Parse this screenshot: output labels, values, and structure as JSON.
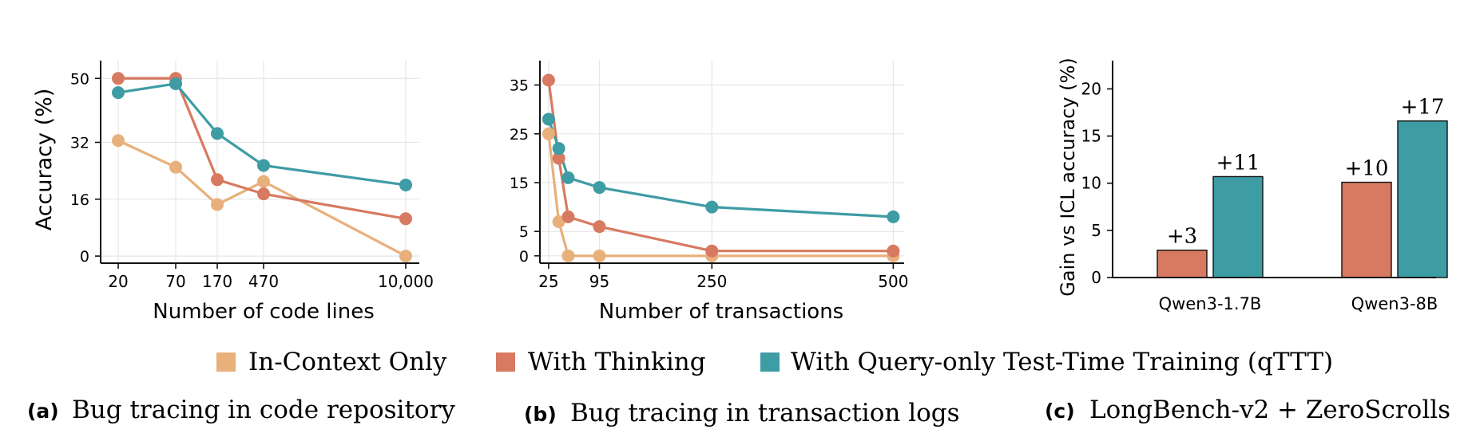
{
  "colors": {
    "in_context": "#E8B07A",
    "thinking": "#D77A61",
    "qttt": "#3E9CA5",
    "grid": "#e6e6e6",
    "axis": "#111111"
  },
  "legend": {
    "items": [
      {
        "label": "In-Context Only",
        "color_key": "in_context"
      },
      {
        "label": "With Thinking",
        "color_key": "thinking"
      },
      {
        "label": "With Query-only Test-Time Training (qTTT)",
        "color_key": "qttt"
      }
    ]
  },
  "captions": {
    "a": {
      "tag": "(a)",
      "text": "Bug tracing in code repository"
    },
    "b": {
      "tag": "(b)",
      "text": "Bug tracing in transaction logs"
    },
    "c": {
      "tag": "(c)",
      "text": "LongBench-v2 + ZeroScrolls"
    }
  },
  "chart_data": [
    {
      "type": "line",
      "xlabel": "Number of code lines",
      "ylabel": "Accuracy (%)",
      "x_scale": "categorical-log",
      "x_ticks": [
        "20",
        "70",
        "170",
        "470",
        "10,000"
      ],
      "y_ticks": [
        0,
        16,
        32,
        50
      ],
      "ylim": [
        -2,
        55
      ],
      "grid": true,
      "series": [
        {
          "name": "In-Context Only",
          "color_key": "in_context",
          "values": [
            32.5,
            25,
            14.5,
            21,
            0
          ]
        },
        {
          "name": "With Thinking",
          "color_key": "thinking",
          "values": [
            50,
            50,
            21.5,
            17.5,
            10.5
          ]
        },
        {
          "name": "With Query-only Test-Time Training (qTTT)",
          "color_key": "qttt",
          "values": [
            46,
            48.5,
            34.5,
            25.5,
            20
          ]
        }
      ]
    },
    {
      "type": "line",
      "xlabel": "Number of transactions",
      "ylabel": "",
      "x": [
        25,
        45,
        65,
        95,
        250,
        500
      ],
      "x_ticks": [
        25,
        95,
        250,
        500
      ],
      "y_ticks": [
        0,
        5,
        15,
        25,
        35
      ],
      "ylim": [
        -1.5,
        40
      ],
      "xlim": [
        13,
        515
      ],
      "grid": true,
      "series": [
        {
          "name": "In-Context Only",
          "color_key": "in_context",
          "x": [
            25,
            39,
            52,
            95,
            250,
            500
          ],
          "values": [
            25,
            7,
            0,
            0,
            0,
            0
          ]
        },
        {
          "name": "With Thinking",
          "color_key": "thinking",
          "x": [
            25,
            39,
            52,
            95,
            250,
            500
          ],
          "values": [
            36,
            20,
            8,
            6,
            1,
            1
          ]
        },
        {
          "name": "With Query-only Test-Time Training (qTTT)",
          "color_key": "qttt",
          "x": [
            25,
            39,
            52,
            95,
            250,
            500
          ],
          "values": [
            28,
            22,
            16,
            14,
            10,
            8
          ]
        }
      ]
    },
    {
      "type": "bar",
      "ylabel": "Gain vs ICL accuracy (%)",
      "categories": [
        "Qwen3-1.7B",
        "Qwen3-8B"
      ],
      "y_ticks": [
        0,
        5,
        10,
        15,
        20
      ],
      "ylim": [
        0,
        23
      ],
      "grid": false,
      "series": [
        {
          "name": "With Thinking",
          "color_key": "thinking",
          "values": [
            2.9,
            10.1
          ],
          "labels": [
            "+3",
            "+10"
          ]
        },
        {
          "name": "With Query-only Test-Time Training (qTTT)",
          "color_key": "qttt",
          "values": [
            10.7,
            16.6
          ],
          "labels": [
            "+11",
            "+17"
          ]
        }
      ]
    }
  ]
}
